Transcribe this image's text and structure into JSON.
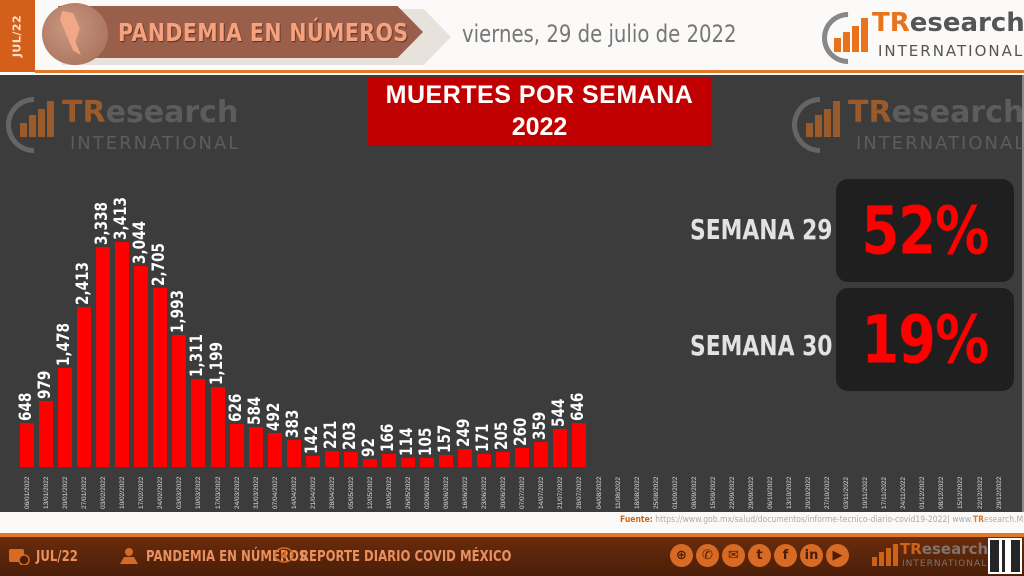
{
  "header": {
    "month_tab": "JUL/22",
    "banner_title": "PANDEMIA EN NÚMEROS",
    "date": "viernes, 29 de julio de 2022",
    "logo": {
      "brand_tr": "TR",
      "brand_rest": "esearch",
      "subtitle": "INTERNATIONAL"
    }
  },
  "chart_title": {
    "line1": "MUERTES POR SEMANA",
    "line2": "2022"
  },
  "kpis": [
    {
      "label": "SEMANA 29",
      "value": "52%"
    },
    {
      "label": "SEMANA 30",
      "value": "19%"
    }
  ],
  "colors": {
    "bar": "#ff0000",
    "panel_bg": "#3c3c3c",
    "title_bg": "#c00000",
    "accent_orange": "#e07a2a",
    "kpi_value": "#ff0000"
  },
  "chart_data": {
    "type": "bar",
    "title": "MUERTES POR SEMANA 2022",
    "xlabel": "",
    "ylabel": "",
    "grid": false,
    "legend": null,
    "categories": [
      "06/01/2022",
      "13/01/2022",
      "20/01/2022",
      "27/01/2022",
      "03/02/2022",
      "10/02/2022",
      "17/02/2022",
      "24/02/2022",
      "03/03/2022",
      "10/03/2022",
      "17/03/2022",
      "24/03/2022",
      "31/03/2022",
      "07/04/2022",
      "14/04/2022",
      "21/04/2022",
      "28/04/2022",
      "05/05/2022",
      "12/05/2022",
      "19/05/2022",
      "26/05/2022",
      "02/06/2022",
      "09/06/2022",
      "16/06/2022",
      "23/06/2022",
      "30/06/2022",
      "07/07/2022",
      "14/07/2022",
      "21/07/2022",
      "28/07/2022",
      "04/08/2022",
      "11/08/2022",
      "18/08/2022",
      "25/08/2022",
      "01/09/2022",
      "08/09/2022",
      "15/09/2022",
      "22/09/2022",
      "29/09/2022",
      "06/10/2022",
      "13/10/2022",
      "20/10/2022",
      "27/10/2022",
      "03/11/2022",
      "10/11/2022",
      "17/11/2022",
      "24/11/2022",
      "01/12/2022",
      "08/12/2022",
      "15/12/2022",
      "22/12/2022",
      "29/12/2022"
    ],
    "values": [
      648,
      979,
      1478,
      2413,
      3338,
      3413,
      3044,
      2705,
      1993,
      1311,
      1199,
      626,
      584,
      492,
      383,
      142,
      221,
      203,
      92,
      166,
      114,
      105,
      157,
      249,
      171,
      205,
      260,
      359,
      544,
      646,
      null,
      null,
      null,
      null,
      null,
      null,
      null,
      null,
      null,
      null,
      null,
      null,
      null,
      null,
      null,
      null,
      null,
      null,
      null,
      null,
      null,
      null
    ],
    "value_labels": [
      "648",
      "979",
      "1,478",
      "2,413",
      "3,338",
      "3,413",
      "3,044",
      "2,705",
      "1,993",
      "1,311",
      "1,199",
      "626",
      "584",
      "492",
      "383",
      "142",
      "221",
      "203",
      "92",
      "166",
      "114",
      "105",
      "157",
      "249",
      "171",
      "205",
      "260",
      "359",
      "544",
      "646"
    ],
    "ylim": [
      0,
      3500
    ]
  },
  "source": {
    "label": "Fuente:",
    "url": "https://www.gob.mx/salud/documentos/informe-tecnico-diario-covid19-2022",
    "site_prefix": "www.",
    "site_tr": "TR",
    "site_rest": "esearch.Mx"
  },
  "footer": {
    "items": [
      {
        "icon": "calendar-clock-icon",
        "label": "JUL/22"
      },
      {
        "icon": "map-pin-person-icon",
        "label": "PANDEMIA EN NÚMEROS"
      },
      {
        "icon": "chat-chart-icon",
        "label": "REPORTE DIARIO COVID MÉXICO"
      }
    ],
    "social": [
      {
        "icon": "globe-icon",
        "glyph": "⊕"
      },
      {
        "icon": "whatsapp-icon",
        "glyph": "✆"
      },
      {
        "icon": "email-icon",
        "glyph": "✉"
      },
      {
        "icon": "twitter-icon",
        "glyph": "t"
      },
      {
        "icon": "facebook-icon",
        "glyph": "f"
      },
      {
        "icon": "linkedin-icon",
        "glyph": "in"
      },
      {
        "icon": "youtube-icon",
        "glyph": "▶"
      }
    ]
  }
}
